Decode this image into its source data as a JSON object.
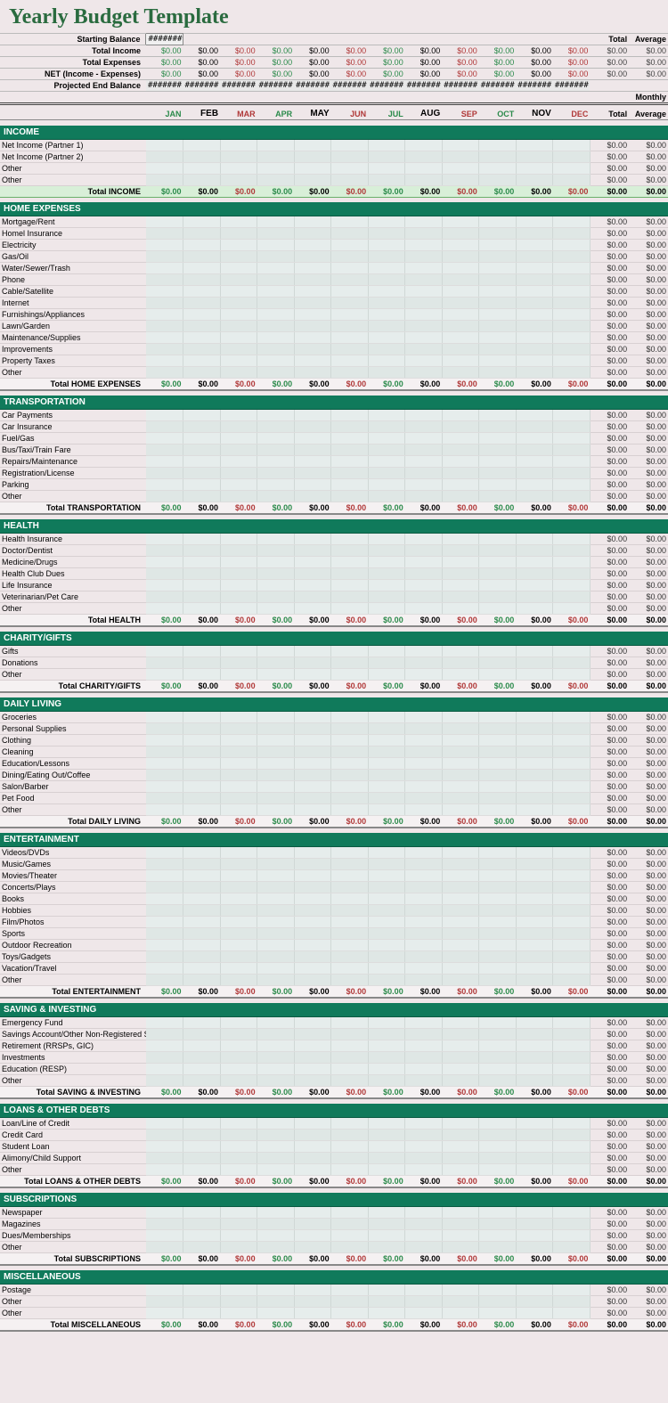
{
  "title": "Yearly Budget Template",
  "months": [
    "JAN",
    "FEB",
    "MAR",
    "APR",
    "MAY",
    "JUN",
    "JUL",
    "AUG",
    "SEP",
    "OCT",
    "NOV",
    "DEC"
  ],
  "monthsBold": [
    false,
    true,
    false,
    false,
    true,
    false,
    false,
    true,
    false,
    false,
    true,
    false
  ],
  "topRight": {
    "total": "Total",
    "average": "Average",
    "monthly": "Monthly"
  },
  "summary": [
    {
      "label": "Starting Balance",
      "style": "hashStart"
    },
    {
      "label": "Total Income",
      "style": "zeros"
    },
    {
      "label": "Total Expenses",
      "style": "zeros"
    },
    {
      "label": "NET (Income - Expenses)",
      "style": "zeros"
    },
    {
      "label": "Projected End Balance",
      "style": "hashRow"
    }
  ],
  "zero": "$0.00",
  "hash": "#######",
  "sections": [
    {
      "name": "INCOME",
      "totalLabel": "Total INCOME",
      "incomeTotal": true,
      "items": [
        "Net Income  (Partner 1)",
        "Net Income (Partner 2)",
        "Other",
        "Other"
      ]
    },
    {
      "name": "HOME EXPENSES",
      "totalLabel": "Total HOME EXPENSES",
      "items": [
        "Mortgage/Rent",
        "Homel Insurance",
        "Electricity",
        "Gas/Oil",
        "Water/Sewer/Trash",
        "Phone",
        "Cable/Satellite",
        "Internet",
        "Furnishings/Appliances",
        "Lawn/Garden",
        "Maintenance/Supplies",
        "Improvements",
        "Property Taxes",
        "Other"
      ]
    },
    {
      "name": "TRANSPORTATION",
      "totalLabel": "Total TRANSPORTATION",
      "items": [
        "Car Payments",
        "Car Insurance",
        "Fuel/Gas",
        "Bus/Taxi/Train Fare",
        "Repairs/Maintenance",
        "Registration/License",
        "Parking",
        "Other"
      ]
    },
    {
      "name": "HEALTH",
      "totalLabel": "Total HEALTH",
      "items": [
        "Health Insurance",
        "Doctor/Dentist",
        "Medicine/Drugs",
        "Health Club Dues",
        "Life Insurance",
        "Veterinarian/Pet Care",
        "Other"
      ]
    },
    {
      "name": "CHARITY/GIFTS",
      "totalLabel": "Total CHARITY/GIFTS",
      "items": [
        "Gifts",
        "Donations",
        "Other"
      ]
    },
    {
      "name": "DAILY LIVING",
      "totalLabel": "Total DAILY LIVING",
      "items": [
        "Groceries",
        "Personal Supplies",
        "Clothing",
        "Cleaning",
        "Education/Lessons",
        "Dining/Eating Out/Coffee",
        "Salon/Barber",
        "Pet Food",
        "Other"
      ]
    },
    {
      "name": "ENTERTAINMENT",
      "totalLabel": "Total ENTERTAINMENT",
      "items": [
        "Videos/DVDs",
        "Music/Games",
        "Movies/Theater",
        "Concerts/Plays",
        "Books",
        "Hobbies",
        "Film/Photos",
        "Sports",
        "Outdoor Recreation",
        "Toys/Gadgets",
        "Vacation/Travel",
        "Other"
      ]
    },
    {
      "name": "SAVING & INVESTING",
      "totalLabel": "Total SAVING & INVESTING",
      "truncateTotal": true,
      "items": [
        "Emergency Fund",
        "Savings Account/Other Non-Registered Savings",
        "Retirement (RRSPs, GIC)",
        "Investments",
        "Education (RESP)",
        "Other"
      ]
    },
    {
      "name": "LOANS & OTHER DEBTS",
      "totalLabel": "Total LOANS & OTHER DEBTS",
      "truncateTotal": true,
      "items": [
        "Loan/Line of Credit",
        "Credit Card",
        "Student Loan",
        "Alimony/Child Support",
        "Other"
      ]
    },
    {
      "name": "SUBSCRIPTIONS",
      "totalLabel": "Total SUBSCRIPTIONS",
      "items": [
        "Newspaper",
        "Magazines",
        "Dues/Memberships",
        "Other"
      ]
    },
    {
      "name": "MISCELLANEOUS",
      "totalLabel": "Total MISCELLANEOUS",
      "items": [
        "Postage",
        "Other",
        "Other"
      ]
    }
  ],
  "colors": {
    "pageBg": "#efe7e9",
    "headerGreen": "#107a5b",
    "greenText": "#2a8a4a",
    "redText": "#b03838",
    "cellBg": "#e6edec"
  }
}
